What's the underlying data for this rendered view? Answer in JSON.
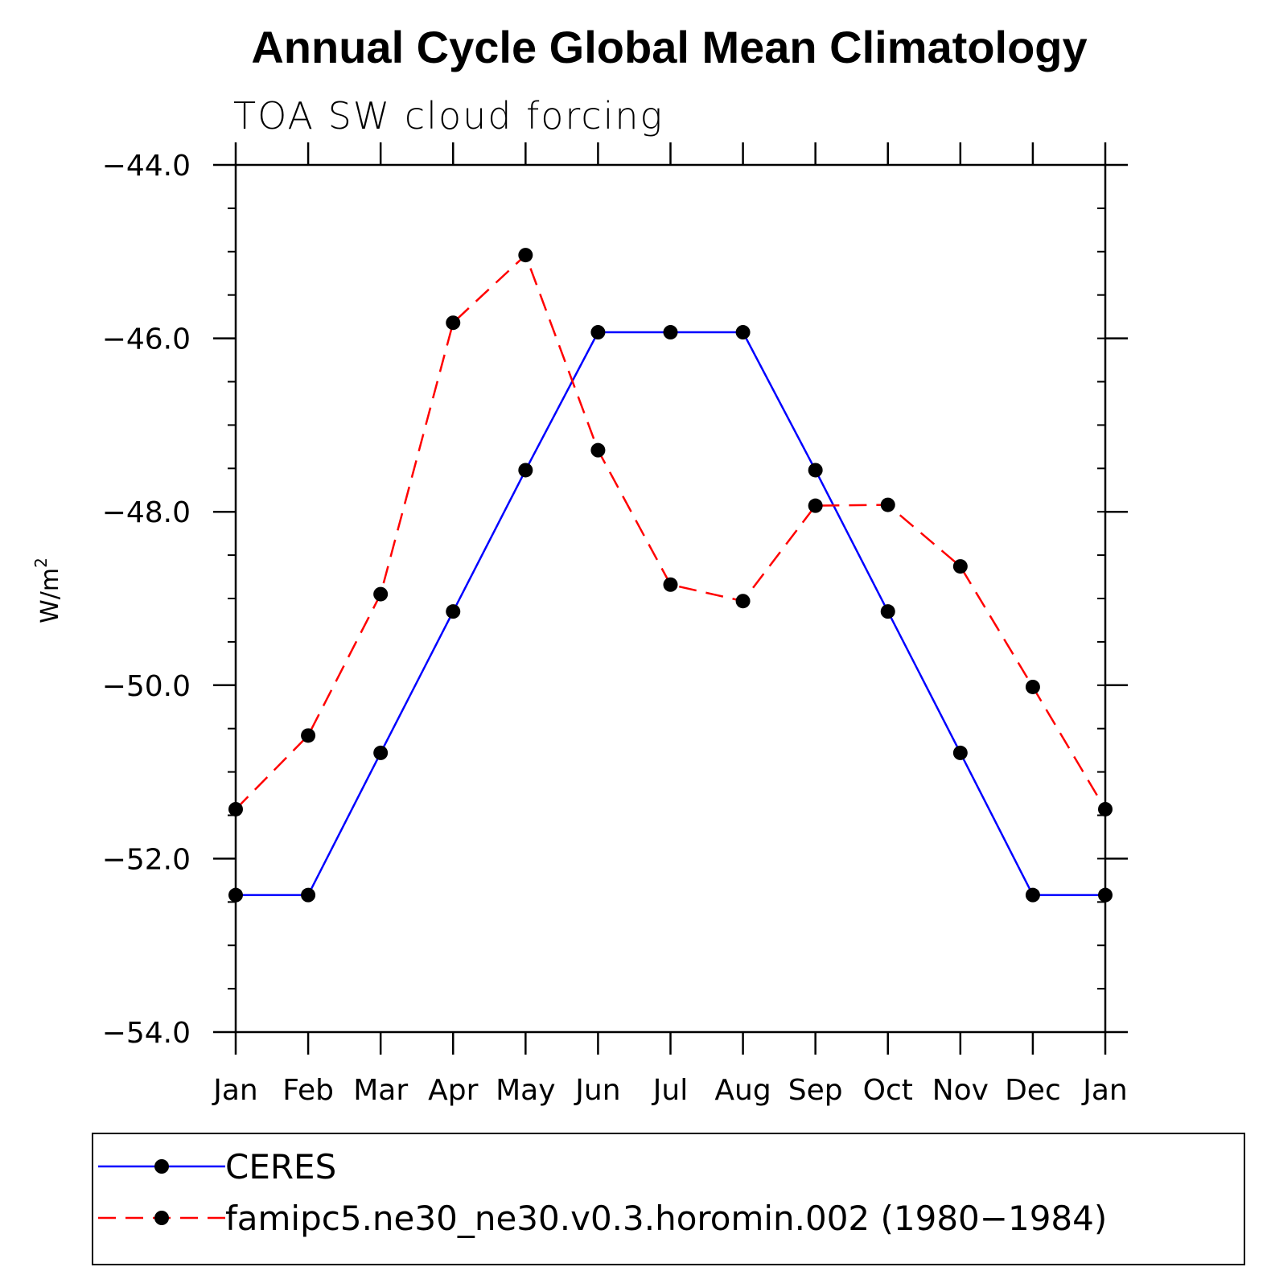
{
  "chart_data": {
    "type": "line",
    "title": "Annual Cycle Global Mean Climatology",
    "subtitle": "TOA SW cloud forcing",
    "ylabel": "W/m",
    "ylabel_superscript": "2",
    "xlabel": "",
    "ylim": [
      -54.0,
      -44.0
    ],
    "y_major_ticks": [
      -54.0,
      -52.0,
      -50.0,
      -48.0,
      -46.0,
      -44.0
    ],
    "y_tick_labels": [
      "−54.0",
      "−52.0",
      "−50.0",
      "−48.0",
      "−46.0",
      "−44.0"
    ],
    "y_minor_step": 0.5,
    "categories": [
      "Jan",
      "Feb",
      "Mar",
      "Apr",
      "May",
      "Jun",
      "Jul",
      "Aug",
      "Sep",
      "Oct",
      "Nov",
      "Dec",
      "Jan"
    ],
    "grid": false,
    "legend_position": "bottom",
    "series": [
      {
        "name": "CERES",
        "color": "#0000ff",
        "dash": "solid",
        "values": [
          -52.42,
          -52.42,
          -50.78,
          -49.15,
          -47.52,
          -45.93,
          -45.93,
          -45.93,
          -47.52,
          -49.15,
          -50.78,
          -52.42,
          -52.42
        ]
      },
      {
        "name": "famipc5.ne30_ne30.v0.3.horomin.002 (1980−1984)",
        "color": "#ff0000",
        "dash": "dashed",
        "values": [
          -51.43,
          -50.58,
          -48.95,
          -45.82,
          -45.04,
          -47.29,
          -48.84,
          -49.03,
          -47.93,
          -47.92,
          -48.63,
          -50.02,
          -51.43
        ]
      }
    ]
  }
}
